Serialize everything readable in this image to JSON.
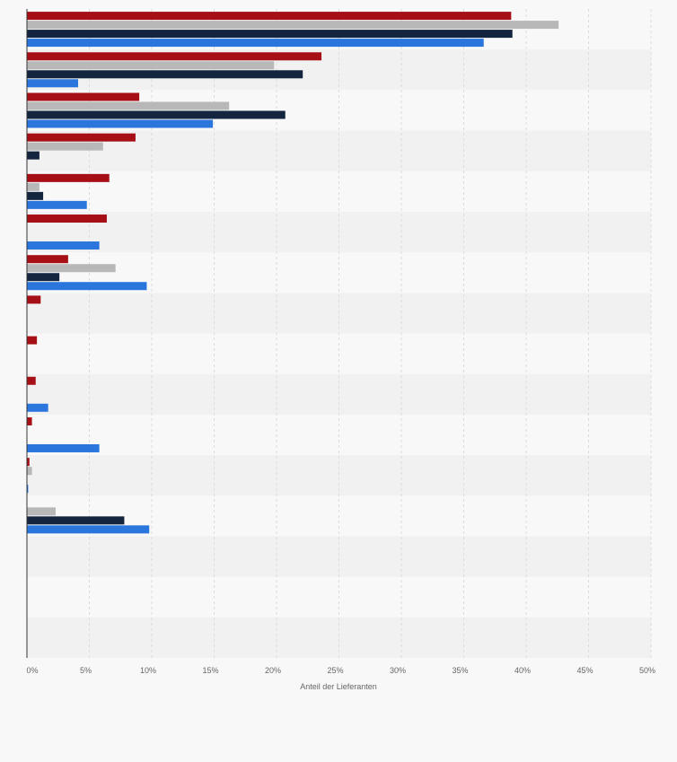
{
  "chart_data": {
    "type": "bar",
    "orientation": "horizontal",
    "title": "",
    "xlabel": "Anteil der Lieferanten",
    "ylabel": "",
    "xlim": [
      0,
      50
    ],
    "x_ticks": [
      "0%",
      "5%",
      "10%",
      "15%",
      "20%",
      "25%",
      "30%",
      "35%",
      "40%",
      "45%",
      "50%"
    ],
    "category_labels_visible": false,
    "categories": [
      "",
      "",
      "",
      "",
      "",
      "",
      "",
      "",
      "",
      "",
      "",
      "",
      "",
      "",
      "",
      ""
    ],
    "grid": true,
    "legend": "none",
    "series": [
      {
        "color": "#a50f15",
        "values": [
          38.8,
          23.6,
          9.0,
          8.7,
          6.6,
          6.4,
          3.3,
          1.1,
          0.8,
          0.7,
          0.4,
          0.2,
          0,
          0,
          0,
          0
        ]
      },
      {
        "color": "#b8b8b8",
        "values": [
          42.6,
          19.8,
          16.2,
          6.1,
          1.0,
          0,
          7.1,
          0,
          0,
          0,
          0,
          0.4,
          2.3,
          0,
          0,
          0
        ]
      },
      {
        "color": "#14253f",
        "values": [
          38.9,
          22.1,
          20.7,
          1.0,
          1.3,
          0,
          2.6,
          0,
          0,
          0,
          0,
          0,
          7.8,
          0,
          0,
          0
        ]
      },
      {
        "color": "#2a76dd",
        "values": [
          36.6,
          4.1,
          14.9,
          0,
          4.8,
          5.8,
          9.6,
          0,
          0,
          1.7,
          5.8,
          0.1,
          9.8,
          0,
          0,
          0
        ]
      }
    ]
  }
}
